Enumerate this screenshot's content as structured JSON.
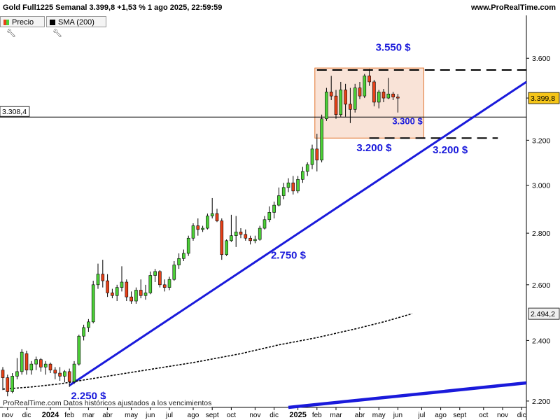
{
  "header": {
    "title": "Gold Full1225 Semanal 3.399,8 +1,53 % 1 ago 2025, 22:59:59",
    "site": "www.ProRealTime.com"
  },
  "legend": [
    {
      "label": "Precio",
      "swatch": "candles"
    },
    {
      "label": "SMA (200)",
      "swatch": "#000000"
    }
  ],
  "footer_note": "ProRealTime.com Datos históricos ajustados a los vencimientos",
  "price_tags": {
    "last": "3.399,8",
    "sma": "2.494,2",
    "hline": "3.308,4"
  },
  "annotations": [
    {
      "id": "a3550",
      "text": "3.550 $",
      "color": "#1a1adb"
    },
    {
      "id": "a3300",
      "text": "3.300 $",
      "color": "#1a1adb"
    },
    {
      "id": "a3200l",
      "text": "3.200 $",
      "color": "#1a1adb"
    },
    {
      "id": "a3200r",
      "text": "3.200 $",
      "color": "#1a1adb"
    },
    {
      "id": "a2750",
      "text": "2.750 $",
      "color": "#1a1adb"
    },
    {
      "id": "a2250",
      "text": "2.250 $",
      "color": "#1a1adb"
    }
  ],
  "colors": {
    "up": "#4cd137",
    "down": "#e84118",
    "trend": "#1a1adb",
    "zone_fill": "#f8dccd",
    "zone_stroke": "#e2742f"
  },
  "chart_data": {
    "type": "candlestick",
    "scale": "log",
    "ylim": [
      2180,
      3760
    ],
    "y_ticks": [
      {
        "v": 3600,
        "label": "3.600"
      },
      {
        "v": 3400,
        "label": ""
      },
      {
        "v": 3200,
        "label": "3.200"
      },
      {
        "v": 3000,
        "label": "3.000"
      },
      {
        "v": 2800,
        "label": "2.800"
      },
      {
        "v": 2600,
        "label": "2.600"
      },
      {
        "v": 2400,
        "label": "2.400"
      },
      {
        "v": 2200,
        "label": "2.200"
      }
    ],
    "x_ticks": [
      {
        "label": "nov",
        "i": 1,
        "bold": false
      },
      {
        "label": "dic",
        "i": 5,
        "bold": false
      },
      {
        "label": "2024",
        "i": 10,
        "bold": true
      },
      {
        "label": "feb",
        "i": 14,
        "bold": false
      },
      {
        "label": "mar",
        "i": 18,
        "bold": false
      },
      {
        "label": "abr",
        "i": 22,
        "bold": false
      },
      {
        "label": "may",
        "i": 27,
        "bold": false
      },
      {
        "label": "jun",
        "i": 31,
        "bold": false
      },
      {
        "label": "jul",
        "i": 35,
        "bold": false
      },
      {
        "label": "ago",
        "i": 40,
        "bold": false
      },
      {
        "label": "sept",
        "i": 44,
        "bold": false
      },
      {
        "label": "oct",
        "i": 48,
        "bold": false
      },
      {
        "label": "nov",
        "i": 53,
        "bold": false
      },
      {
        "label": "dic",
        "i": 57,
        "bold": false
      },
      {
        "label": "2025",
        "i": 62,
        "bold": true
      },
      {
        "label": "feb",
        "i": 66,
        "bold": false
      },
      {
        "label": "mar",
        "i": 70,
        "bold": false
      },
      {
        "label": "abr",
        "i": 75,
        "bold": false
      },
      {
        "label": "may",
        "i": 79,
        "bold": false
      },
      {
        "label": "jun",
        "i": 83,
        "bold": false
      },
      {
        "label": "jul",
        "i": 88,
        "bold": false
      },
      {
        "label": "ago",
        "i": 92,
        "bold": false
      },
      {
        "label": "sept",
        "i": 96,
        "bold": false
      },
      {
        "label": "oct",
        "i": 101,
        "bold": false
      },
      {
        "label": "nov",
        "i": 105,
        "bold": false
      },
      {
        "label": "dic",
        "i": 109,
        "bold": false
      }
    ],
    "candles": [
      {
        "o": 2300,
        "h": 2310,
        "l": 2235,
        "c": 2275
      },
      {
        "o": 2275,
        "h": 2285,
        "l": 2215,
        "c": 2230
      },
      {
        "o": 2230,
        "h": 2290,
        "l": 2225,
        "c": 2280
      },
      {
        "o": 2280,
        "h": 2340,
        "l": 2270,
        "c": 2295
      },
      {
        "o": 2295,
        "h": 2370,
        "l": 2285,
        "c": 2360
      },
      {
        "o": 2355,
        "h": 2365,
        "l": 2285,
        "c": 2300
      },
      {
        "o": 2300,
        "h": 2330,
        "l": 2285,
        "c": 2320
      },
      {
        "o": 2320,
        "h": 2345,
        "l": 2300,
        "c": 2335
      },
      {
        "o": 2335,
        "h": 2340,
        "l": 2295,
        "c": 2310
      },
      {
        "o": 2310,
        "h": 2330,
        "l": 2285,
        "c": 2320
      },
      {
        "o": 2320,
        "h": 2325,
        "l": 2290,
        "c": 2300
      },
      {
        "o": 2300,
        "h": 2310,
        "l": 2270,
        "c": 2290
      },
      {
        "o": 2290,
        "h": 2310,
        "l": 2265,
        "c": 2280
      },
      {
        "o": 2280,
        "h": 2300,
        "l": 2260,
        "c": 2295
      },
      {
        "o": 2295,
        "h": 2305,
        "l": 2245,
        "c": 2262
      },
      {
        "o": 2262,
        "h": 2330,
        "l": 2255,
        "c": 2320
      },
      {
        "o": 2320,
        "h": 2420,
        "l": 2315,
        "c": 2415
      },
      {
        "o": 2415,
        "h": 2455,
        "l": 2400,
        "c": 2445
      },
      {
        "o": 2445,
        "h": 2475,
        "l": 2430,
        "c": 2465
      },
      {
        "o": 2465,
        "h": 2615,
        "l": 2460,
        "c": 2600
      },
      {
        "o": 2600,
        "h": 2680,
        "l": 2585,
        "c": 2640
      },
      {
        "o": 2640,
        "h": 2695,
        "l": 2590,
        "c": 2615
      },
      {
        "o": 2615,
        "h": 2640,
        "l": 2555,
        "c": 2570
      },
      {
        "o": 2570,
        "h": 2585,
        "l": 2550,
        "c": 2560
      },
      {
        "o": 2560,
        "h": 2600,
        "l": 2540,
        "c": 2590
      },
      {
        "o": 2590,
        "h": 2670,
        "l": 2575,
        "c": 2610
      },
      {
        "o": 2610,
        "h": 2620,
        "l": 2540,
        "c": 2555
      },
      {
        "o": 2555,
        "h": 2575,
        "l": 2530,
        "c": 2540
      },
      {
        "o": 2540,
        "h": 2590,
        "l": 2530,
        "c": 2580
      },
      {
        "o": 2580,
        "h": 2620,
        "l": 2550,
        "c": 2560
      },
      {
        "o": 2560,
        "h": 2600,
        "l": 2545,
        "c": 2570
      },
      {
        "o": 2570,
        "h": 2650,
        "l": 2565,
        "c": 2635
      },
      {
        "o": 2635,
        "h": 2660,
        "l": 2610,
        "c": 2650
      },
      {
        "o": 2650,
        "h": 2655,
        "l": 2590,
        "c": 2600
      },
      {
        "o": 2600,
        "h": 2620,
        "l": 2575,
        "c": 2590
      },
      {
        "o": 2590,
        "h": 2630,
        "l": 2580,
        "c": 2620
      },
      {
        "o": 2620,
        "h": 2690,
        "l": 2615,
        "c": 2675
      },
      {
        "o": 2675,
        "h": 2720,
        "l": 2660,
        "c": 2700
      },
      {
        "o": 2700,
        "h": 2735,
        "l": 2690,
        "c": 2720
      },
      {
        "o": 2720,
        "h": 2790,
        "l": 2710,
        "c": 2780
      },
      {
        "o": 2780,
        "h": 2840,
        "l": 2770,
        "c": 2830
      },
      {
        "o": 2830,
        "h": 2860,
        "l": 2790,
        "c": 2815
      },
      {
        "o": 2815,
        "h": 2830,
        "l": 2805,
        "c": 2820
      },
      {
        "o": 2820,
        "h": 2880,
        "l": 2815,
        "c": 2870
      },
      {
        "o": 2870,
        "h": 2945,
        "l": 2860,
        "c": 2880
      },
      {
        "o": 2880,
        "h": 2900,
        "l": 2845,
        "c": 2850
      },
      {
        "o": 2850,
        "h": 2860,
        "l": 2695,
        "c": 2715
      },
      {
        "o": 2715,
        "h": 2775,
        "l": 2710,
        "c": 2770
      },
      {
        "o": 2770,
        "h": 2875,
        "l": 2765,
        "c": 2790
      },
      {
        "o": 2790,
        "h": 2870,
        "l": 2745,
        "c": 2805
      },
      {
        "o": 2805,
        "h": 2820,
        "l": 2780,
        "c": 2795
      },
      {
        "o": 2795,
        "h": 2815,
        "l": 2770,
        "c": 2780
      },
      {
        "o": 2780,
        "h": 2790,
        "l": 2755,
        "c": 2770
      },
      {
        "o": 2770,
        "h": 2790,
        "l": 2760,
        "c": 2775
      },
      {
        "o": 2775,
        "h": 2830,
        "l": 2770,
        "c": 2820
      },
      {
        "o": 2820,
        "h": 2870,
        "l": 2815,
        "c": 2855
      },
      {
        "o": 2855,
        "h": 2910,
        "l": 2845,
        "c": 2885
      },
      {
        "o": 2885,
        "h": 2930,
        "l": 2860,
        "c": 2915
      },
      {
        "o": 2915,
        "h": 2990,
        "l": 2910,
        "c": 2955
      },
      {
        "o": 2955,
        "h": 3010,
        "l": 2940,
        "c": 2990
      },
      {
        "o": 2990,
        "h": 3030,
        "l": 2970,
        "c": 3010
      },
      {
        "o": 3010,
        "h": 3040,
        "l": 2960,
        "c": 2975
      },
      {
        "o": 2975,
        "h": 3040,
        "l": 2965,
        "c": 3025
      },
      {
        "o": 3025,
        "h": 3080,
        "l": 3010,
        "c": 3060
      },
      {
        "o": 3060,
        "h": 3100,
        "l": 3040,
        "c": 3090
      },
      {
        "o": 3090,
        "h": 3180,
        "l": 3070,
        "c": 3160
      },
      {
        "o": 3160,
        "h": 3230,
        "l": 3060,
        "c": 3110
      },
      {
        "o": 3110,
        "h": 3320,
        "l": 3100,
        "c": 3300
      },
      {
        "o": 3300,
        "h": 3450,
        "l": 3290,
        "c": 3430
      },
      {
        "o": 3430,
        "h": 3510,
        "l": 3390,
        "c": 3410
      },
      {
        "o": 3410,
        "h": 3440,
        "l": 3300,
        "c": 3320
      },
      {
        "o": 3320,
        "h": 3480,
        "l": 3310,
        "c": 3440
      },
      {
        "o": 3440,
        "h": 3470,
        "l": 3310,
        "c": 3370
      },
      {
        "o": 3370,
        "h": 3450,
        "l": 3280,
        "c": 3345
      },
      {
        "o": 3345,
        "h": 3470,
        "l": 3330,
        "c": 3450
      },
      {
        "o": 3450,
        "h": 3480,
        "l": 3395,
        "c": 3410
      },
      {
        "o": 3410,
        "h": 3520,
        "l": 3400,
        "c": 3510
      },
      {
        "o": 3510,
        "h": 3545,
        "l": 3460,
        "c": 3480
      },
      {
        "o": 3480,
        "h": 3490,
        "l": 3360,
        "c": 3380
      },
      {
        "o": 3380,
        "h": 3440,
        "l": 3350,
        "c": 3430
      },
      {
        "o": 3430,
        "h": 3445,
        "l": 3380,
        "c": 3400
      },
      {
        "o": 3400,
        "h": 3500,
        "l": 3395,
        "c": 3420
      },
      {
        "o": 3420,
        "h": 3430,
        "l": 3390,
        "c": 3405
      },
      {
        "o": 3405,
        "h": 3420,
        "l": 3330,
        "c": 3399.8
      }
    ],
    "sma_200": [
      {
        "i": 0,
        "v": 2238
      },
      {
        "i": 6,
        "v": 2245
      },
      {
        "i": 12,
        "v": 2255
      },
      {
        "i": 20,
        "v": 2275
      },
      {
        "i": 30,
        "v": 2300
      },
      {
        "i": 40,
        "v": 2325
      },
      {
        "i": 50,
        "v": 2355
      },
      {
        "i": 58,
        "v": 2385
      },
      {
        "i": 66,
        "v": 2410
      },
      {
        "i": 74,
        "v": 2440
      },
      {
        "i": 80,
        "v": 2465
      },
      {
        "i": 86,
        "v": 2494.2
      }
    ],
    "hline": 3308.4,
    "zone": {
      "i0": 66,
      "i1": 88,
      "top": 3550,
      "bottom": 3210
    }
  }
}
